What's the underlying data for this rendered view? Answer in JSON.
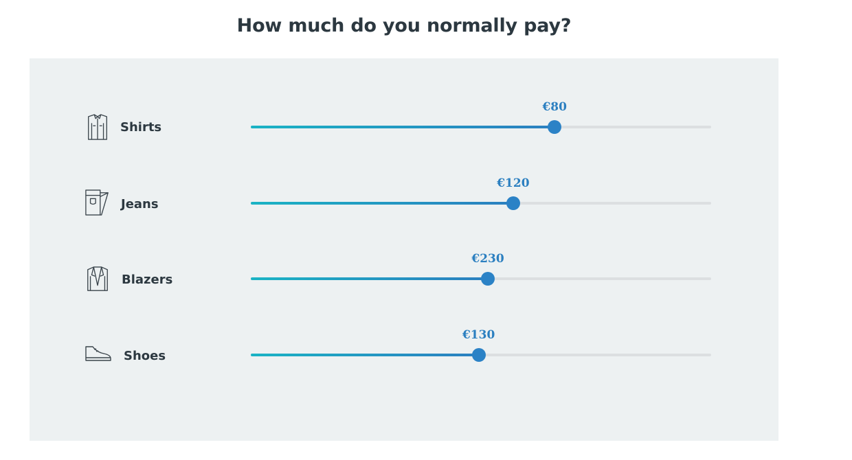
{
  "title": "How much do you normally pay?",
  "colors": {
    "panel_bg": "#edf1f2",
    "fill_start": "#1ab3c4",
    "fill_end": "#2b7fc0",
    "thumb": "#2b82c6",
    "track": "#dcdfe1",
    "text": "#2c3840"
  },
  "items": [
    {
      "label": "Shirts",
      "icon": "shirt-icon",
      "value_text": "€80",
      "level": 0.66
    },
    {
      "label": "Jeans",
      "icon": "jeans-icon",
      "value_text": "€120",
      "level": 0.57
    },
    {
      "label": "Blazers",
      "icon": "blazer-icon",
      "value_text": "€230",
      "level": 0.515
    },
    {
      "label": "Shoes",
      "icon": "shoe-icon",
      "value_text": "€130",
      "level": 0.495
    }
  ]
}
